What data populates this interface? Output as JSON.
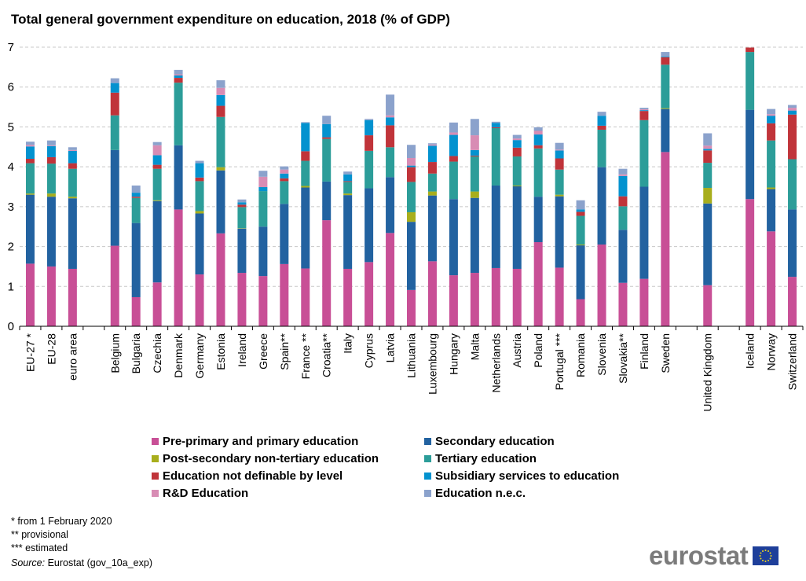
{
  "chart_data": {
    "type": "bar",
    "stacked": true,
    "title": "Total general government expenditure on education, 2018 (% of GDP)",
    "xlabel": "",
    "ylabel": "",
    "ylim": [
      0,
      7
    ],
    "yticks": [
      0,
      1,
      2,
      3,
      4,
      5,
      6,
      7
    ],
    "grid": true,
    "legend_position": "bottom",
    "categories": [
      "EU-27 *",
      "EU-28",
      "euro area",
      "",
      "Belgium",
      "Bulgaria",
      "Czechia",
      "Denmark",
      "Germany",
      "Estonia",
      "Ireland",
      "Greece",
      "Spain**",
      "France **",
      "Croatia**",
      "Italy",
      "Cyprus",
      "Latvia",
      "Lithuania",
      "Luxembourg",
      "Hungary",
      "Malta",
      "Netherlands",
      "Austria",
      "Poland",
      "Portugal ***",
      "Romania",
      "Slovenia",
      "Slovakia**",
      "Finland",
      "Sweden",
      "",
      "United Kingdom",
      "",
      "Iceland",
      "Norway",
      "Switzerland"
    ],
    "series": [
      {
        "name": "Pre-primary and primary education",
        "color": "#c84f96",
        "values": [
          1.57,
          1.5,
          1.44,
          null,
          2.02,
          0.73,
          1.1,
          2.93,
          1.3,
          2.33,
          1.34,
          1.26,
          1.56,
          1.45,
          2.66,
          1.44,
          1.61,
          2.34,
          0.91,
          1.63,
          1.28,
          1.34,
          1.46,
          1.44,
          2.11,
          1.47,
          0.68,
          2.05,
          1.09,
          1.19,
          4.37,
          null,
          1.03,
          null,
          3.19,
          2.38,
          1.24
        ]
      },
      {
        "name": "Secondary education",
        "color": "#2262a0",
        "values": [
          1.73,
          1.75,
          1.77,
          null,
          2.4,
          1.86,
          2.04,
          1.61,
          1.53,
          1.58,
          1.11,
          1.24,
          1.51,
          2.03,
          0.97,
          1.85,
          1.85,
          1.4,
          1.71,
          1.65,
          1.91,
          1.88,
          2.07,
          2.07,
          1.14,
          1.79,
          1.35,
          1.94,
          1.33,
          2.31,
          1.08,
          null,
          2.05,
          null,
          2.24,
          1.06,
          1.69
        ]
      },
      {
        "name": "Post-secondary non-tertiary education",
        "color": "#a8ae1c",
        "values": [
          0.03,
          0.08,
          0.04,
          null,
          0.0,
          0.0,
          0.02,
          0.0,
          0.06,
          0.08,
          0.01,
          0.0,
          0.0,
          0.04,
          0.0,
          0.04,
          0.0,
          0.0,
          0.24,
          0.1,
          0.0,
          0.16,
          0.0,
          0.02,
          0.0,
          0.04,
          0.02,
          0.0,
          0.0,
          0.0,
          0.02,
          null,
          0.39,
          null,
          0.0,
          0.04,
          0.0
        ]
      },
      {
        "name": "Tertiary education",
        "color": "#2c9d99",
        "values": [
          0.76,
          0.75,
          0.7,
          null,
          0.87,
          0.63,
          0.79,
          1.57,
          0.75,
          1.26,
          0.53,
          0.89,
          0.57,
          0.63,
          1.07,
          0.29,
          0.94,
          0.75,
          0.76,
          0.45,
          0.94,
          0.88,
          1.44,
          0.73,
          1.21,
          0.63,
          0.72,
          0.94,
          0.59,
          1.67,
          1.09,
          null,
          0.63,
          null,
          1.45,
          1.18,
          1.26
        ]
      },
      {
        "name": "Education not definable by level",
        "color": "#c0343a",
        "values": [
          0.11,
          0.16,
          0.14,
          null,
          0.57,
          0.03,
          0.1,
          0.12,
          0.09,
          0.28,
          0.06,
          0.0,
          0.07,
          0.24,
          0.04,
          0.02,
          0.39,
          0.55,
          0.37,
          0.29,
          0.14,
          0.02,
          0.02,
          0.22,
          0.08,
          0.28,
          0.1,
          0.1,
          0.25,
          0.23,
          0.19,
          null,
          0.31,
          null,
          0.11,
          0.43,
          1.12
        ]
      },
      {
        "name": "Subsidiary services to education",
        "color": "#0392cf",
        "values": [
          0.31,
          0.28,
          0.31,
          null,
          0.24,
          0.1,
          0.24,
          0.06,
          0.36,
          0.27,
          0.06,
          0.1,
          0.12,
          0.71,
          0.33,
          0.17,
          0.38,
          0.2,
          0.04,
          0.41,
          0.53,
          0.14,
          0.11,
          0.19,
          0.27,
          0.2,
          0.06,
          0.25,
          0.51,
          0.02,
          0.02,
          null,
          0.04,
          null,
          0.0,
          0.19,
          0.1
        ]
      },
      {
        "name": "R&D Education",
        "color": "#d88cb4",
        "values": [
          0.04,
          0.02,
          0.02,
          null,
          0.0,
          0.0,
          0.25,
          0.03,
          0.0,
          0.18,
          0.0,
          0.26,
          0.1,
          0.0,
          0.0,
          0.0,
          0.0,
          0.05,
          0.19,
          0.03,
          0.06,
          0.37,
          0.0,
          0.04,
          0.09,
          0.02,
          0.0,
          0.0,
          0.04,
          0.02,
          0.0,
          null,
          0.08,
          null,
          0.0,
          0.04,
          0.07
        ]
      },
      {
        "name": "Education n.e.c.",
        "color": "#8ba2cc",
        "values": [
          0.08,
          0.12,
          0.07,
          null,
          0.12,
          0.18,
          0.08,
          0.11,
          0.06,
          0.19,
          0.07,
          0.15,
          0.08,
          0.02,
          0.21,
          0.07,
          0.03,
          0.52,
          0.33,
          0.03,
          0.25,
          0.41,
          0.03,
          0.09,
          0.09,
          0.17,
          0.23,
          0.1,
          0.14,
          0.04,
          0.11,
          null,
          0.31,
          null,
          0.0,
          0.13,
          0.07
        ]
      }
    ]
  },
  "notes": {
    "note1": "* from 1 February 2020",
    "note2": "** provisional",
    "note3": "*** estimated",
    "source_label": "Source:",
    "source_text": " Eurostat (gov_10a_exp)"
  },
  "logo": {
    "text": "eurostat",
    "flag_color": "#1e3f9a",
    "star_color": "#f2d91a",
    "text_color": "#7b7b7b"
  }
}
